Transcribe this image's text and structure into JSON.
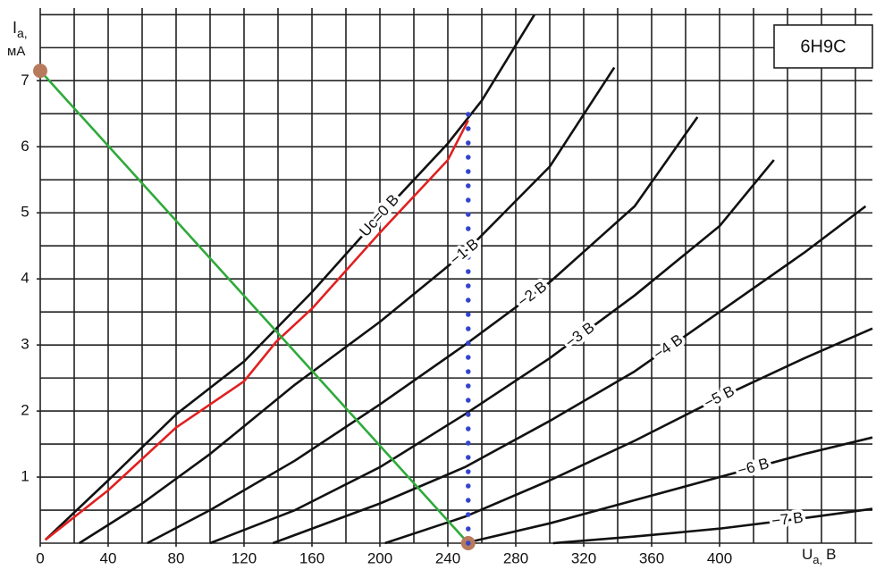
{
  "chart_data": {
    "type": "line",
    "title": "6H9C",
    "y_label": "I",
    "y_label_sub": "a,",
    "y_label_unit": "мА",
    "x_label": "U",
    "x_label_sub": "a,",
    "x_label_unit": "B",
    "xlim": [
      0,
      490
    ],
    "ylim": [
      0,
      8.1
    ],
    "xticks": [
      0,
      40,
      80,
      120,
      160,
      200,
      240,
      280,
      320,
      360,
      400
    ],
    "yticks": [
      1,
      2,
      3,
      4,
      5,
      6,
      7
    ],
    "xgrid": [
      0,
      20,
      40,
      60,
      80,
      100,
      120,
      140,
      160,
      180,
      200,
      220,
      240,
      260,
      280,
      300,
      320,
      340,
      360,
      380,
      400,
      420,
      440,
      460,
      480
    ],
    "ygrid": [
      0,
      0.5,
      1,
      1.5,
      2,
      2.5,
      3,
      3.5,
      4,
      4.5,
      5,
      5.5,
      6,
      6.5,
      7,
      7.5,
      8
    ],
    "series": [
      {
        "name": "Uc=0 B",
        "color": "#111111",
        "x": [
          3,
          40,
          80,
          120,
          160,
          200,
          240,
          260,
          291
        ],
        "values": [
          0.05,
          0.95,
          1.95,
          2.75,
          3.8,
          4.95,
          6.05,
          6.7,
          8.0
        ]
      },
      {
        "name": "−1 B",
        "color": "#111111",
        "x": [
          23,
          60,
          100,
          150,
          200,
          250,
          300,
          338
        ],
        "values": [
          0,
          0.6,
          1.35,
          2.4,
          3.35,
          4.4,
          5.7,
          7.2
        ]
      },
      {
        "name": "−2 B",
        "color": "#111111",
        "x": [
          63,
          100,
          150,
          200,
          250,
          300,
          350,
          387
        ],
        "values": [
          0,
          0.5,
          1.25,
          2.1,
          3.0,
          3.95,
          5.1,
          6.45
        ]
      },
      {
        "name": "−3 B",
        "color": "#111111",
        "x": [
          100,
          150,
          200,
          250,
          300,
          350,
          400,
          432
        ],
        "values": [
          0,
          0.5,
          1.15,
          1.95,
          2.8,
          3.75,
          4.8,
          5.8
        ]
      },
      {
        "name": "−4 B",
        "color": "#111111",
        "x": [
          137,
          200,
          250,
          300,
          350,
          400,
          450,
          486
        ],
        "values": [
          0,
          0.6,
          1.15,
          1.85,
          2.6,
          3.5,
          4.4,
          5.1
        ]
      },
      {
        "name": "−5 B",
        "color": "#111111",
        "x": [
          203,
          250,
          300,
          350,
          400,
          450,
          490
        ],
        "values": [
          0,
          0.4,
          0.95,
          1.55,
          2.2,
          2.8,
          3.25
        ]
      },
      {
        "name": "−6 B",
        "color": "#111111",
        "x": [
          250,
          300,
          350,
          400,
          450,
          490
        ],
        "values": [
          0,
          0.3,
          0.65,
          1.0,
          1.35,
          1.6
        ]
      },
      {
        "name": "−7 B",
        "color": "#111111",
        "x": [
          302,
          350,
          400,
          450,
          490
        ],
        "values": [
          0,
          0.1,
          0.22,
          0.38,
          0.52
        ]
      },
      {
        "color": "#e02020",
        "x": [
          3,
          40,
          80,
          120,
          139,
          160,
          200,
          240,
          252
        ],
        "values": [
          0.05,
          0.8,
          1.75,
          2.45,
          3.05,
          3.55,
          4.7,
          5.8,
          6.4
        ]
      },
      {
        "color": "#2eaa3a",
        "marker_color": "#b87a5c",
        "x": [
          0,
          252
        ],
        "values": [
          7.15,
          0
        ]
      },
      {
        "color": "#3344cc",
        "dash": "dotted",
        "x": [
          252,
          252
        ],
        "values": [
          0,
          6.65
        ]
      }
    ]
  }
}
